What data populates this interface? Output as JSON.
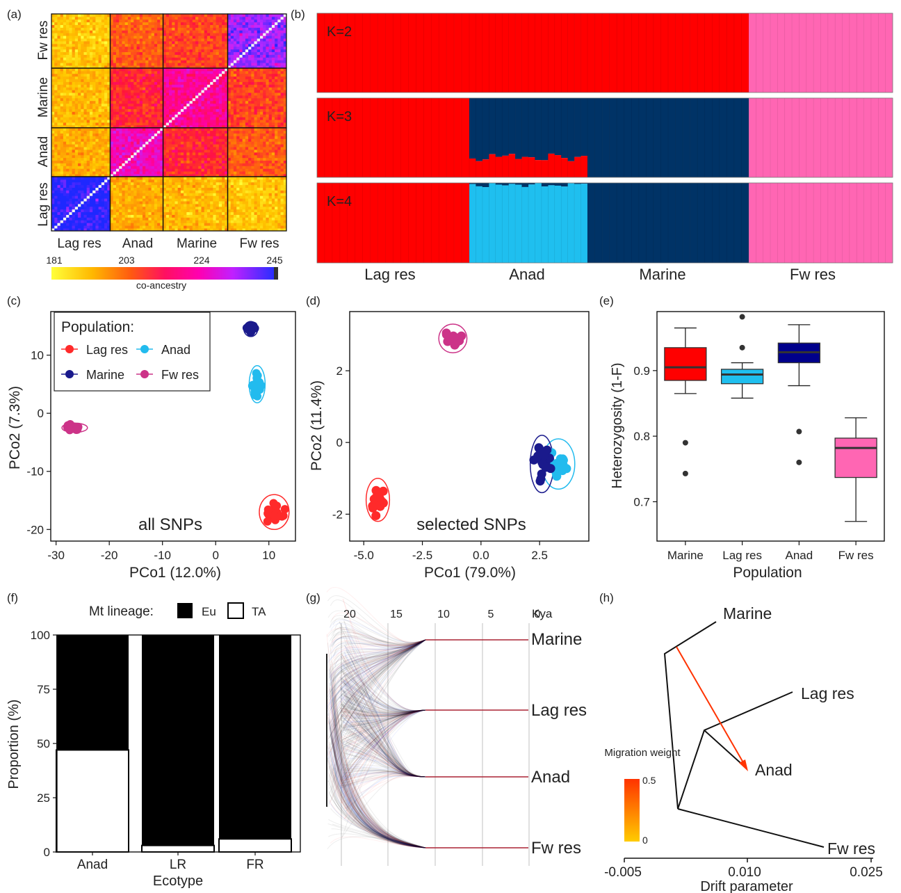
{
  "panel_labels": [
    "(a)",
    "(b)",
    "(c)",
    "(d)",
    "(e)",
    "(f)",
    "(g)",
    "(h)"
  ],
  "chart_data": [
    {
      "panel": "a",
      "type": "heatmap",
      "groups": [
        "Lag res",
        "Anad",
        "Marine",
        "Fw res"
      ],
      "group_sizes": [
        20,
        18,
        22,
        20
      ],
      "row_labels": [
        "Fw res",
        "Marine",
        "Anad",
        "Lag res"
      ],
      "block_mean_coancestry": [
        [
          236,
          208,
          205,
          190
        ],
        [
          208,
          222,
          212,
          192
        ],
        [
          205,
          212,
          226,
          194
        ],
        [
          190,
          192,
          194,
          245
        ]
      ],
      "colorbar_ticks": [
        181,
        203,
        224,
        245
      ],
      "colorbar_label": "co-ancestry",
      "colors": [
        "#ffff3a",
        "#ff9a00",
        "#ff2020",
        "#ff00a0",
        "#d020ff",
        "#2030ff"
      ]
    },
    {
      "panel": "b",
      "type": "bar",
      "subtype": "stacked admixture",
      "groups": [
        "Lag res",
        "Anad",
        "Marine",
        "Fw res"
      ],
      "group_sizes": [
        20,
        18,
        22,
        20
      ],
      "k_labels": [
        "K=2",
        "K=3",
        "K=4"
      ],
      "cluster_colors": [
        "#ff0000",
        "#ff66b3",
        "#003366",
        "#1fbfef"
      ],
      "k2": {
        "Lag res": [
          1,
          0
        ],
        "Anad": [
          1,
          0
        ],
        "Marine": [
          1,
          0
        ],
        "Fw res": [
          0,
          1
        ]
      },
      "k3": {
        "Lag res": [
          1,
          0,
          0
        ],
        "Anad": [
          0.25,
          0.01,
          0.74
        ],
        "Marine": [
          0,
          0,
          1
        ],
        "Fw res": [
          0,
          1,
          0
        ]
      },
      "k4": {
        "Lag res": [
          1,
          0,
          0,
          0
        ],
        "Anad": [
          0.01,
          0,
          0.04,
          0.95
        ],
        "Marine": [
          0,
          0,
          1,
          0
        ],
        "Fw res": [
          0,
          1,
          0,
          0
        ]
      }
    },
    {
      "panel": "c",
      "type": "scatter",
      "xlabel": "PCo1 (12.0%)",
      "ylabel": "PCo2 (7.3%)",
      "xlim": [
        -31,
        15
      ],
      "ylim": [
        -22,
        17.5
      ],
      "xticks": [
        -30,
        -20,
        -10,
        0,
        10
      ],
      "yticks": [
        10,
        0,
        -10,
        -20
      ],
      "annotation": "all SNPs",
      "legend_title": "Population:",
      "legend": [
        {
          "name": "Lag res",
          "color": "#ff2a2a"
        },
        {
          "name": "Anad",
          "color": "#22bbee"
        },
        {
          "name": "Marine",
          "color": "#1a1a8c"
        },
        {
          "name": "Fw res",
          "color": "#cc3388"
        }
      ],
      "series": [
        {
          "name": "Lag res",
          "center": [
            11,
            -17
          ],
          "spread": [
            2.8,
            3.0
          ]
        },
        {
          "name": "Anad",
          "center": [
            7.8,
            5
          ],
          "spread": [
            1.5,
            3.2
          ]
        },
        {
          "name": "Marine",
          "center": [
            6.6,
            14.5
          ],
          "spread": [
            1.3,
            1.3
          ]
        },
        {
          "name": "Fw res",
          "center": [
            -26.5,
            -2.5
          ],
          "spread": [
            2.4,
            0.8
          ]
        }
      ]
    },
    {
      "panel": "d",
      "type": "scatter",
      "xlabel": "PCo1 (79.0%)",
      "ylabel": "PCo2 (11.4%)",
      "xlim": [
        -5.6,
        4.6
      ],
      "ylim": [
        -2.75,
        3.65
      ],
      "xticks": [
        "-5.0",
        "-2.5",
        "0.0",
        "2.5"
      ],
      "yticks": [
        2,
        0,
        -2
      ],
      "annotation": "selected SNPs",
      "series": [
        {
          "name": "Lag res",
          "center": [
            -4.4,
            -1.6
          ],
          "spread": [
            0.5,
            0.6
          ]
        },
        {
          "name": "Anad",
          "center": [
            3.3,
            -0.6
          ],
          "spread": [
            0.7,
            0.7
          ]
        },
        {
          "name": "Marine",
          "center": [
            2.6,
            -0.6
          ],
          "spread": [
            0.5,
            0.8
          ]
        },
        {
          "name": "Fw res",
          "center": [
            -1.2,
            2.9
          ],
          "spread": [
            0.6,
            0.4
          ]
        }
      ]
    },
    {
      "panel": "e",
      "type": "box",
      "xlabel": "Population",
      "ylabel": "Heterozygosity (1-F)",
      "ylim": [
        0.64,
        0.99
      ],
      "yticks": [
        "0.9",
        "0.8",
        "0.7"
      ],
      "categories": [
        "Marine",
        "Lag res",
        "Anad",
        "Fw res"
      ],
      "boxes": [
        {
          "name": "Marine",
          "color": "#ff0000",
          "min": 0.865,
          "q1": 0.885,
          "median": 0.905,
          "q3": 0.935,
          "max": 0.965,
          "outliers": [
            0.79,
            0.743
          ]
        },
        {
          "name": "Lag res",
          "color": "#1fbfef",
          "min": 0.858,
          "q1": 0.88,
          "median": 0.894,
          "q3": 0.902,
          "max": 0.912,
          "outliers": [
            0.935,
            0.982
          ]
        },
        {
          "name": "Anad",
          "color": "#00008b",
          "min": 0.877,
          "q1": 0.912,
          "median": 0.928,
          "q3": 0.942,
          "max": 0.97,
          "outliers": [
            0.807,
            0.76
          ]
        },
        {
          "name": "Fw res",
          "color": "#ff66b3",
          "min": 0.67,
          "q1": 0.737,
          "median": 0.782,
          "q3": 0.797,
          "max": 0.828,
          "outliers": []
        }
      ]
    },
    {
      "panel": "f",
      "type": "bar",
      "subtype": "stacked",
      "xlabel": "Ecotype",
      "ylabel": "Proportion (%)",
      "legend_title": "Mt lineage:",
      "legend": [
        {
          "name": "Eu",
          "color": "#000000"
        },
        {
          "name": "TA",
          "color": "#ffffff"
        }
      ],
      "categories": [
        "Anad",
        "LR",
        "FR"
      ],
      "series": [
        {
          "name": "TA",
          "values": [
            47,
            3,
            6
          ]
        },
        {
          "name": "Eu",
          "values": [
            53,
            97,
            94
          ]
        }
      ],
      "ylim": [
        0,
        100
      ],
      "yticks": [
        0,
        25,
        50,
        75,
        100
      ]
    },
    {
      "panel": "g",
      "type": "line",
      "subtype": "phylogeny cloud",
      "time_ticks": [
        "20",
        "15",
        "10",
        "5",
        "0"
      ],
      "time_unit": "Kya",
      "tips": [
        "Marine",
        "Lag res",
        "Anad",
        "Fw res"
      ]
    },
    {
      "panel": "h",
      "type": "line",
      "subtype": "treemix tree",
      "xlabel": "Drift parameter",
      "xticks": [
        "-0.005",
        "0.010",
        "0.025"
      ],
      "tips": [
        "Marine",
        "Lag res",
        "Anad",
        "Fw res"
      ],
      "migration_legend_title": "Migration weight",
      "migration_ticks": [
        "0.5",
        "0"
      ],
      "migration_color": "#ff3300"
    }
  ]
}
